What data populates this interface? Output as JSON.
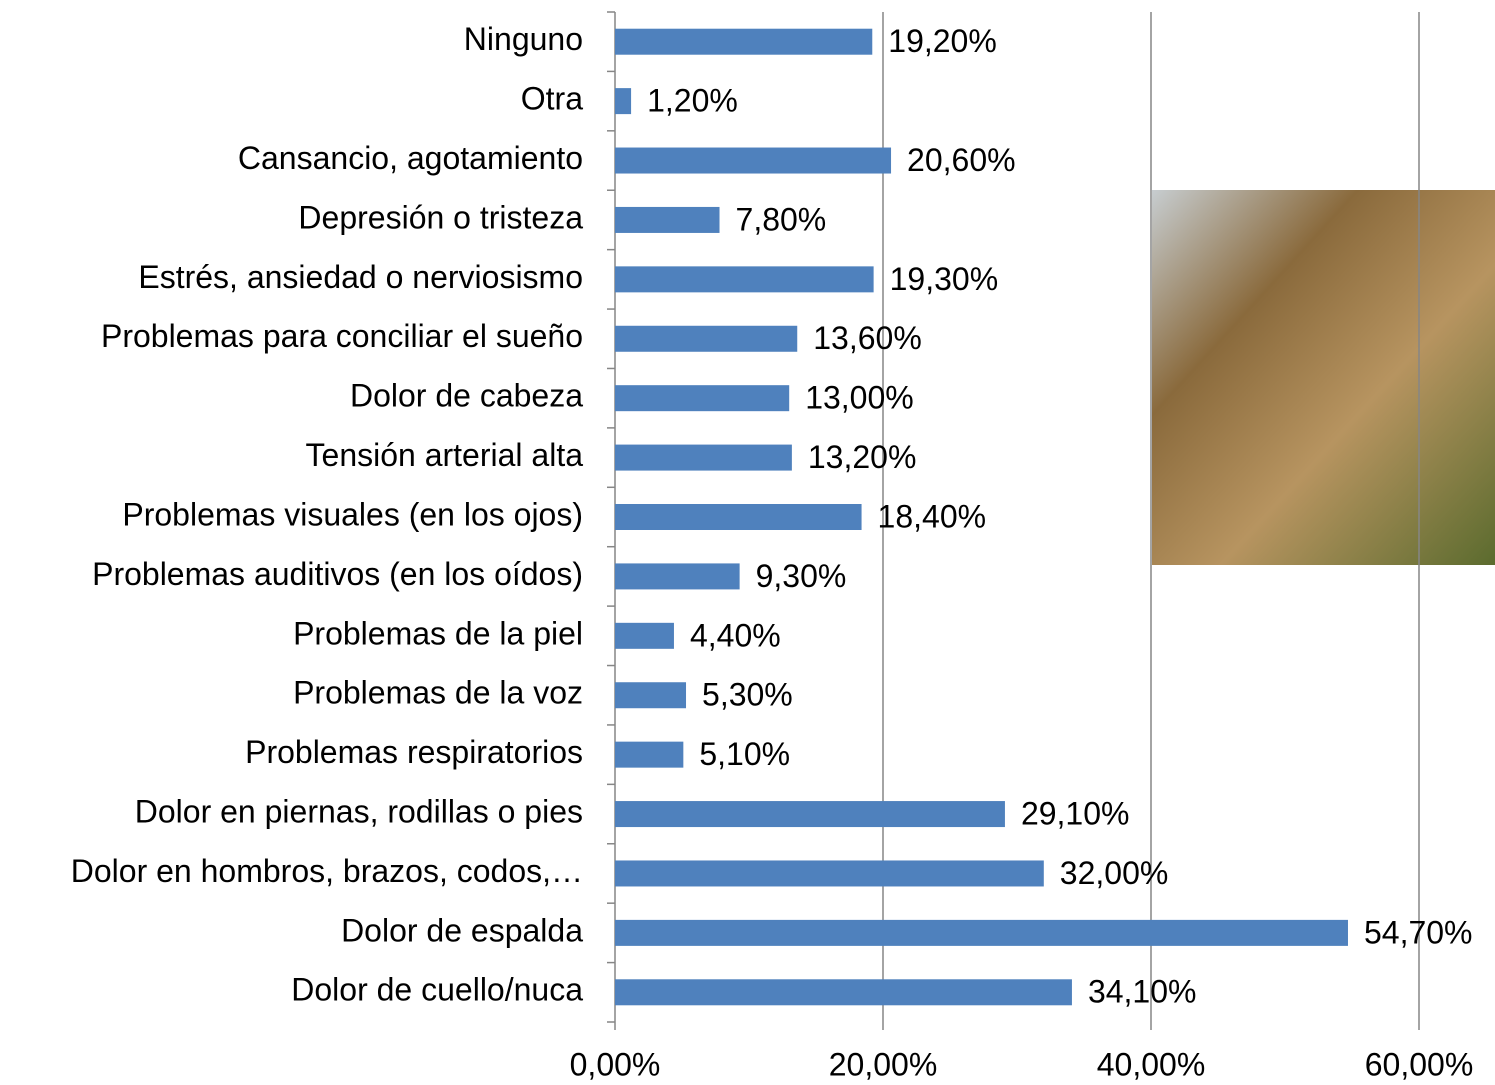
{
  "chart_data": {
    "type": "bar",
    "orientation": "horizontal",
    "categories": [
      "Ninguno",
      "Otra",
      "Cansancio, agotamiento",
      "Depresión o tristeza",
      "Estrés, ansiedad o nerviosismo",
      "Problemas para conciliar el sueño",
      "Dolor de cabeza",
      "Tensión arterial alta",
      "Problemas visuales (en los ojos)",
      "Problemas auditivos (en los oídos)",
      "Problemas de la piel",
      "Problemas de la voz",
      "Problemas respiratorios",
      "Dolor en piernas, rodillas o pies",
      "Dolor en hombros, brazos, codos,…",
      "Dolor de espalda",
      "Dolor de cuello/nuca"
    ],
    "values": [
      19.2,
      1.2,
      20.6,
      7.8,
      19.3,
      13.6,
      13.0,
      13.2,
      18.4,
      9.3,
      4.4,
      5.3,
      5.1,
      29.1,
      32.0,
      54.7,
      34.1
    ],
    "value_labels": [
      "19,20%",
      "1,20%",
      "20,60%",
      "7,80%",
      "19,30%",
      "13,60%",
      "13,00%",
      "13,20%",
      "18,40%",
      "9,30%",
      "4,40%",
      "5,30%",
      "5,10%",
      "29,10%",
      "32,00%",
      "54,70%",
      "34,10%"
    ],
    "color": "#4f81bd",
    "xlim": [
      0,
      60
    ],
    "xticks": [
      {
        "value": 0,
        "label": "0,00%"
      },
      {
        "value": 20,
        "label": "20,00%"
      },
      {
        "value": 40,
        "label": "40,00%"
      },
      {
        "value": 60,
        "label": "60,00%"
      }
    ],
    "grid": true
  }
}
